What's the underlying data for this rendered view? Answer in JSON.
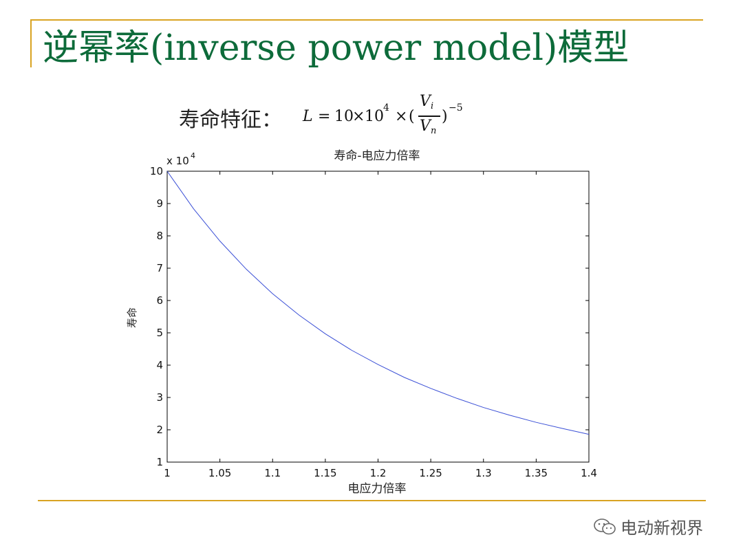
{
  "slide": {
    "title": "逆幂率(inverse power model)模型",
    "formula_label": "寿命特征：",
    "formula": {
      "lhs": "L",
      "eq": "=",
      "coef": "10",
      "times1": "×",
      "base": "10",
      "exp": "4",
      "times2": "×",
      "open": "(",
      "num": "V",
      "num_sub": "i",
      "den": "V",
      "den_sub": "n",
      "close": ")",
      "power": "−5"
    }
  },
  "chart_data": {
    "type": "line",
    "title": "寿命-电应力倍率",
    "xlabel": "电应力倍率",
    "ylabel": "寿命",
    "y_multiplier": "x 10",
    "y_multiplier_exp": "4",
    "xlim": [
      1,
      1.4
    ],
    "ylim": [
      1,
      10
    ],
    "x_ticks": [
      "1",
      "1.05",
      "1.1",
      "1.15",
      "1.2",
      "1.25",
      "1.3",
      "1.35",
      "1.4"
    ],
    "y_ticks": [
      "1",
      "2",
      "3",
      "4",
      "5",
      "6",
      "7",
      "8",
      "9",
      "10"
    ],
    "grid": false,
    "line_color": "#3a4fd6",
    "series": [
      {
        "x": [
          1.0,
          1.025,
          1.05,
          1.075,
          1.1,
          1.125,
          1.15,
          1.175,
          1.2,
          1.225,
          1.25,
          1.275,
          1.3,
          1.325,
          1.35,
          1.375,
          1.4
        ],
        "values": [
          10.0,
          8.84,
          7.84,
          6.97,
          6.21,
          5.55,
          4.97,
          4.46,
          4.02,
          3.62,
          3.28,
          2.97,
          2.69,
          2.45,
          2.23,
          2.04,
          1.86
        ]
      }
    ]
  },
  "watermark": {
    "text": "电动新视界",
    "icon": "wechat-icon"
  },
  "colors": {
    "accent": "#d9a321",
    "title": "#0d6b3a"
  }
}
